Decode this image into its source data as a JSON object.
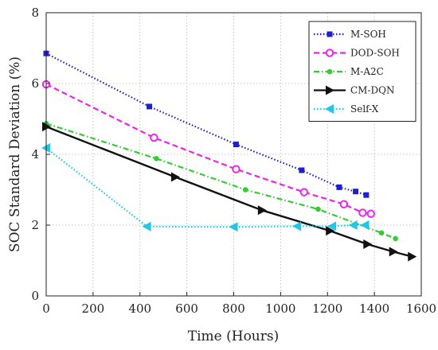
{
  "chart_data": {
    "type": "line",
    "xlabel": "Time (Hours)",
    "ylabel": "SOC Standard Deviation (%)",
    "xlim": [
      0,
      1600
    ],
    "ylim": [
      0,
      8
    ],
    "xticks": [
      0,
      200,
      400,
      600,
      800,
      1000,
      1200,
      1400,
      1600
    ],
    "yticks": [
      0,
      2,
      4,
      6,
      8
    ],
    "xtick_labels": [
      "0",
      "200",
      "400",
      "600",
      "800",
      "1000",
      "1200",
      "1400",
      "1600"
    ],
    "ytick_labels": [
      "0",
      "2",
      "4",
      "6",
      "8"
    ],
    "grid": true,
    "legend_position": "top-right",
    "series": [
      {
        "name": "M-SOH",
        "color": "#1f1fd0",
        "dash": "dotted",
        "marker": "square",
        "x": [
          0,
          440,
          810,
          1090,
          1250,
          1320,
          1365
        ],
        "y": [
          6.85,
          5.35,
          4.28,
          3.55,
          3.07,
          2.95,
          2.85
        ]
      },
      {
        "name": "DOD-SOH",
        "color": "#ee22ee",
        "dash": "dashed",
        "marker": "circle",
        "x": [
          0,
          460,
          810,
          1100,
          1270,
          1350,
          1385
        ],
        "y": [
          5.98,
          4.47,
          3.58,
          2.93,
          2.59,
          2.35,
          2.32
        ]
      },
      {
        "name": "M-A2C",
        "color": "#33cc33",
        "dash": "dashdot",
        "marker": "dot",
        "x": [
          0,
          470,
          850,
          1160,
          1430,
          1490
        ],
        "y": [
          4.87,
          3.88,
          3.0,
          2.45,
          1.78,
          1.62
        ]
      },
      {
        "name": "CM-DQN",
        "color": "#111111",
        "dash": "solid",
        "marker": "triangle-right",
        "x": [
          0,
          550,
          920,
          1210,
          1370,
          1480,
          1560
        ],
        "y": [
          4.78,
          3.36,
          2.42,
          1.84,
          1.46,
          1.25,
          1.11
        ]
      },
      {
        "name": "Self-X",
        "color": "#22c6e6",
        "dash": "dotted",
        "marker": "triangle-left",
        "x": [
          0,
          430,
          800,
          1070,
          1220,
          1310,
          1360
        ],
        "y": [
          4.18,
          1.96,
          1.95,
          1.97,
          1.97,
          2.0,
          2.0
        ]
      }
    ]
  }
}
